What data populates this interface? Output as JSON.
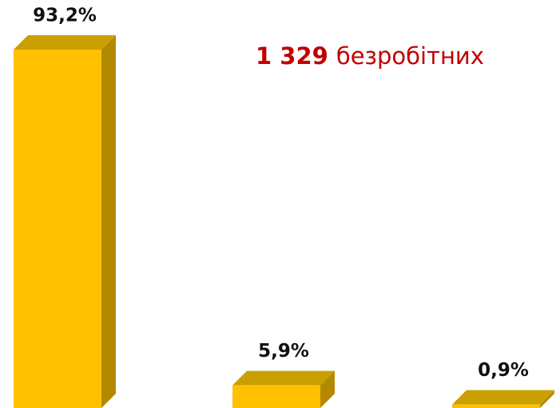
{
  "chart_data": {
    "type": "bar3d",
    "categories": [
      null,
      null,
      null
    ],
    "values": [
      93.2,
      5.9,
      0.9
    ],
    "value_labels": [
      "93,2%",
      "5,9%",
      "0,9%"
    ],
    "color": "#ffc000",
    "annotation": {
      "number": "1 329",
      "text": "безробітних",
      "color": "#c00000"
    }
  }
}
